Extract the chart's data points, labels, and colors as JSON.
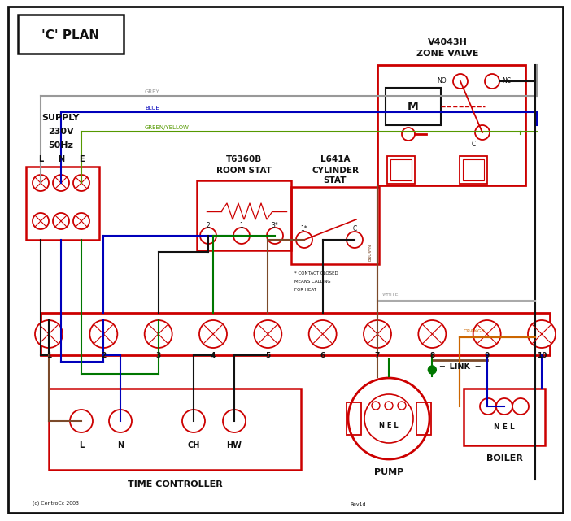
{
  "title": "'C' PLAN",
  "bg_color": "#ffffff",
  "red": "#cc0000",
  "blue": "#0000bb",
  "green": "#007700",
  "grey": "#999999",
  "brown": "#7b4a2a",
  "orange": "#cc6600",
  "black": "#111111",
  "gy": "#559900",
  "copyright": "(c) CentroCc 2003",
  "rev": "Rev1d"
}
